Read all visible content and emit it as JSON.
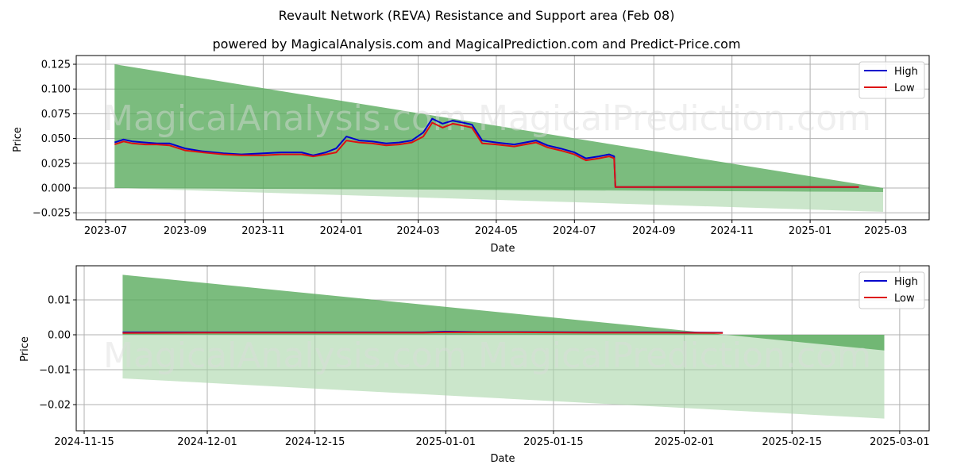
{
  "header": {
    "title": "Revault Network (REVA) Resistance and Support area (Feb 08)",
    "subtitle": "powered by MagicalAnalysis.com and MagicalPrediction.com and Predict-Price.com"
  },
  "watermarks": [
    "MagicalAnalysis.com",
    "MagicalPrediction.com"
  ],
  "colors": {
    "high": "#0000cc",
    "low": "#dd1111",
    "resistance_band": "#5aab5e",
    "support_band": "#a8d5a8",
    "grid": "#b0b0b0"
  },
  "legend": [
    {
      "label": "High",
      "color": "#0000cc"
    },
    {
      "label": "Low",
      "color": "#dd1111"
    }
  ],
  "chart_data": [
    {
      "type": "line",
      "title": "Revault Network (REVA) Resistance and Support area (Feb 08) - full history",
      "xlabel": "Date",
      "ylabel": "Price",
      "ylim": [
        -0.032,
        0.134
      ],
      "grid": true,
      "legend_position": "upper right",
      "x_ticks": [
        "2023-07",
        "2023-09",
        "2023-11",
        "2024-01",
        "2024-03",
        "2024-05",
        "2024-07",
        "2024-09",
        "2024-11",
        "2025-01",
        "2025-03"
      ],
      "y_ticks": [
        "-0.025",
        "0.000",
        "0.025",
        "0.050",
        "0.075",
        "0.100",
        "0.125"
      ],
      "bands": {
        "resistance": {
          "x": [
            "2023-07-08",
            "2025-02-27"
          ],
          "upper": [
            0.125,
            0.0
          ],
          "lower": [
            0.0,
            -0.004
          ]
        },
        "support": {
          "x": [
            "2023-07-08",
            "2025-02-27"
          ],
          "upper": [
            0.0,
            -0.004
          ],
          "lower": [
            0.0,
            -0.024
          ]
        }
      },
      "x": [
        "2023-07-08",
        "2023-07-15",
        "2023-07-22",
        "2023-08-01",
        "2023-08-10",
        "2023-08-20",
        "2023-09-01",
        "2023-09-15",
        "2023-10-01",
        "2023-10-15",
        "2023-11-01",
        "2023-11-15",
        "2023-12-01",
        "2023-12-10",
        "2023-12-20",
        "2023-12-28",
        "2024-01-05",
        "2024-01-15",
        "2024-01-25",
        "2024-02-05",
        "2024-02-15",
        "2024-02-25",
        "2024-03-05",
        "2024-03-12",
        "2024-03-20",
        "2024-03-28",
        "2024-04-05",
        "2024-04-12",
        "2024-04-20",
        "2024-05-01",
        "2024-05-15",
        "2024-06-01",
        "2024-06-10",
        "2024-06-20",
        "2024-07-01",
        "2024-07-10",
        "2024-07-20",
        "2024-07-28",
        "2024-08-01",
        "2024-08-02",
        "2024-09-01",
        "2024-10-01",
        "2024-11-01",
        "2024-12-01",
        "2025-01-01",
        "2025-02-08"
      ],
      "series": [
        {
          "name": "High",
          "values": [
            0.046,
            0.049,
            0.047,
            0.046,
            0.045,
            0.045,
            0.04,
            0.037,
            0.035,
            0.034,
            0.035,
            0.036,
            0.036,
            0.033,
            0.036,
            0.04,
            0.052,
            0.048,
            0.047,
            0.045,
            0.046,
            0.048,
            0.056,
            0.07,
            0.065,
            0.068,
            0.066,
            0.064,
            0.048,
            0.046,
            0.044,
            0.048,
            0.043,
            0.04,
            0.036,
            0.03,
            0.032,
            0.034,
            0.032,
            0.001,
            0.001,
            0.001,
            0.001,
            0.001,
            0.001,
            0.001
          ]
        },
        {
          "name": "Low",
          "values": [
            0.044,
            0.047,
            0.045,
            0.044,
            0.044,
            0.043,
            0.038,
            0.036,
            0.034,
            0.033,
            0.033,
            0.034,
            0.034,
            0.032,
            0.034,
            0.036,
            0.048,
            0.046,
            0.045,
            0.043,
            0.044,
            0.046,
            0.052,
            0.066,
            0.061,
            0.065,
            0.063,
            0.061,
            0.045,
            0.044,
            0.042,
            0.046,
            0.041,
            0.038,
            0.034,
            0.028,
            0.03,
            0.032,
            0.03,
            0.001,
            0.001,
            0.001,
            0.001,
            0.001,
            0.001,
            0.001
          ]
        }
      ]
    },
    {
      "type": "line",
      "title": "Revault Network (REVA) Resistance and Support area (Feb 08) - recent",
      "xlabel": "Date",
      "ylabel": "Price",
      "ylim": [
        -0.027,
        0.019
      ],
      "grid": true,
      "legend_position": "upper right",
      "x_ticks": [
        "2024-11-15",
        "2024-12-01",
        "2024-12-15",
        "2025-01-01",
        "2025-01-15",
        "2025-02-01",
        "2025-02-15",
        "2025-03-01"
      ],
      "y_ticks": [
        "-0.02",
        "-0.01",
        "0.00",
        "0.01"
      ],
      "bands": {
        "resistance": {
          "x": [
            "2024-11-20",
            "2025-02-27"
          ],
          "upper": [
            0.0172,
            -0.0045
          ],
          "lower": [
            0.0,
            0.0
          ]
        },
        "support": {
          "x": [
            "2024-11-20",
            "2025-02-27"
          ],
          "upper": [
            0.0,
            0.0
          ],
          "lower": [
            -0.0125,
            -0.024
          ]
        }
      },
      "x": [
        "2024-11-20",
        "2024-12-01",
        "2024-12-15",
        "2024-12-29",
        "2025-01-01",
        "2025-01-05",
        "2025-01-10",
        "2025-01-20",
        "2025-01-30",
        "2025-02-06"
      ],
      "series": [
        {
          "name": "High",
          "values": [
            0.0007,
            0.0007,
            0.0007,
            0.0007,
            0.0009,
            0.0008,
            0.0008,
            0.0007,
            0.0007,
            0.0006
          ]
        },
        {
          "name": "Low",
          "values": [
            0.0005,
            0.0006,
            0.0006,
            0.0006,
            0.0007,
            0.0007,
            0.0007,
            0.0006,
            0.0006,
            0.0005
          ]
        }
      ]
    }
  ]
}
